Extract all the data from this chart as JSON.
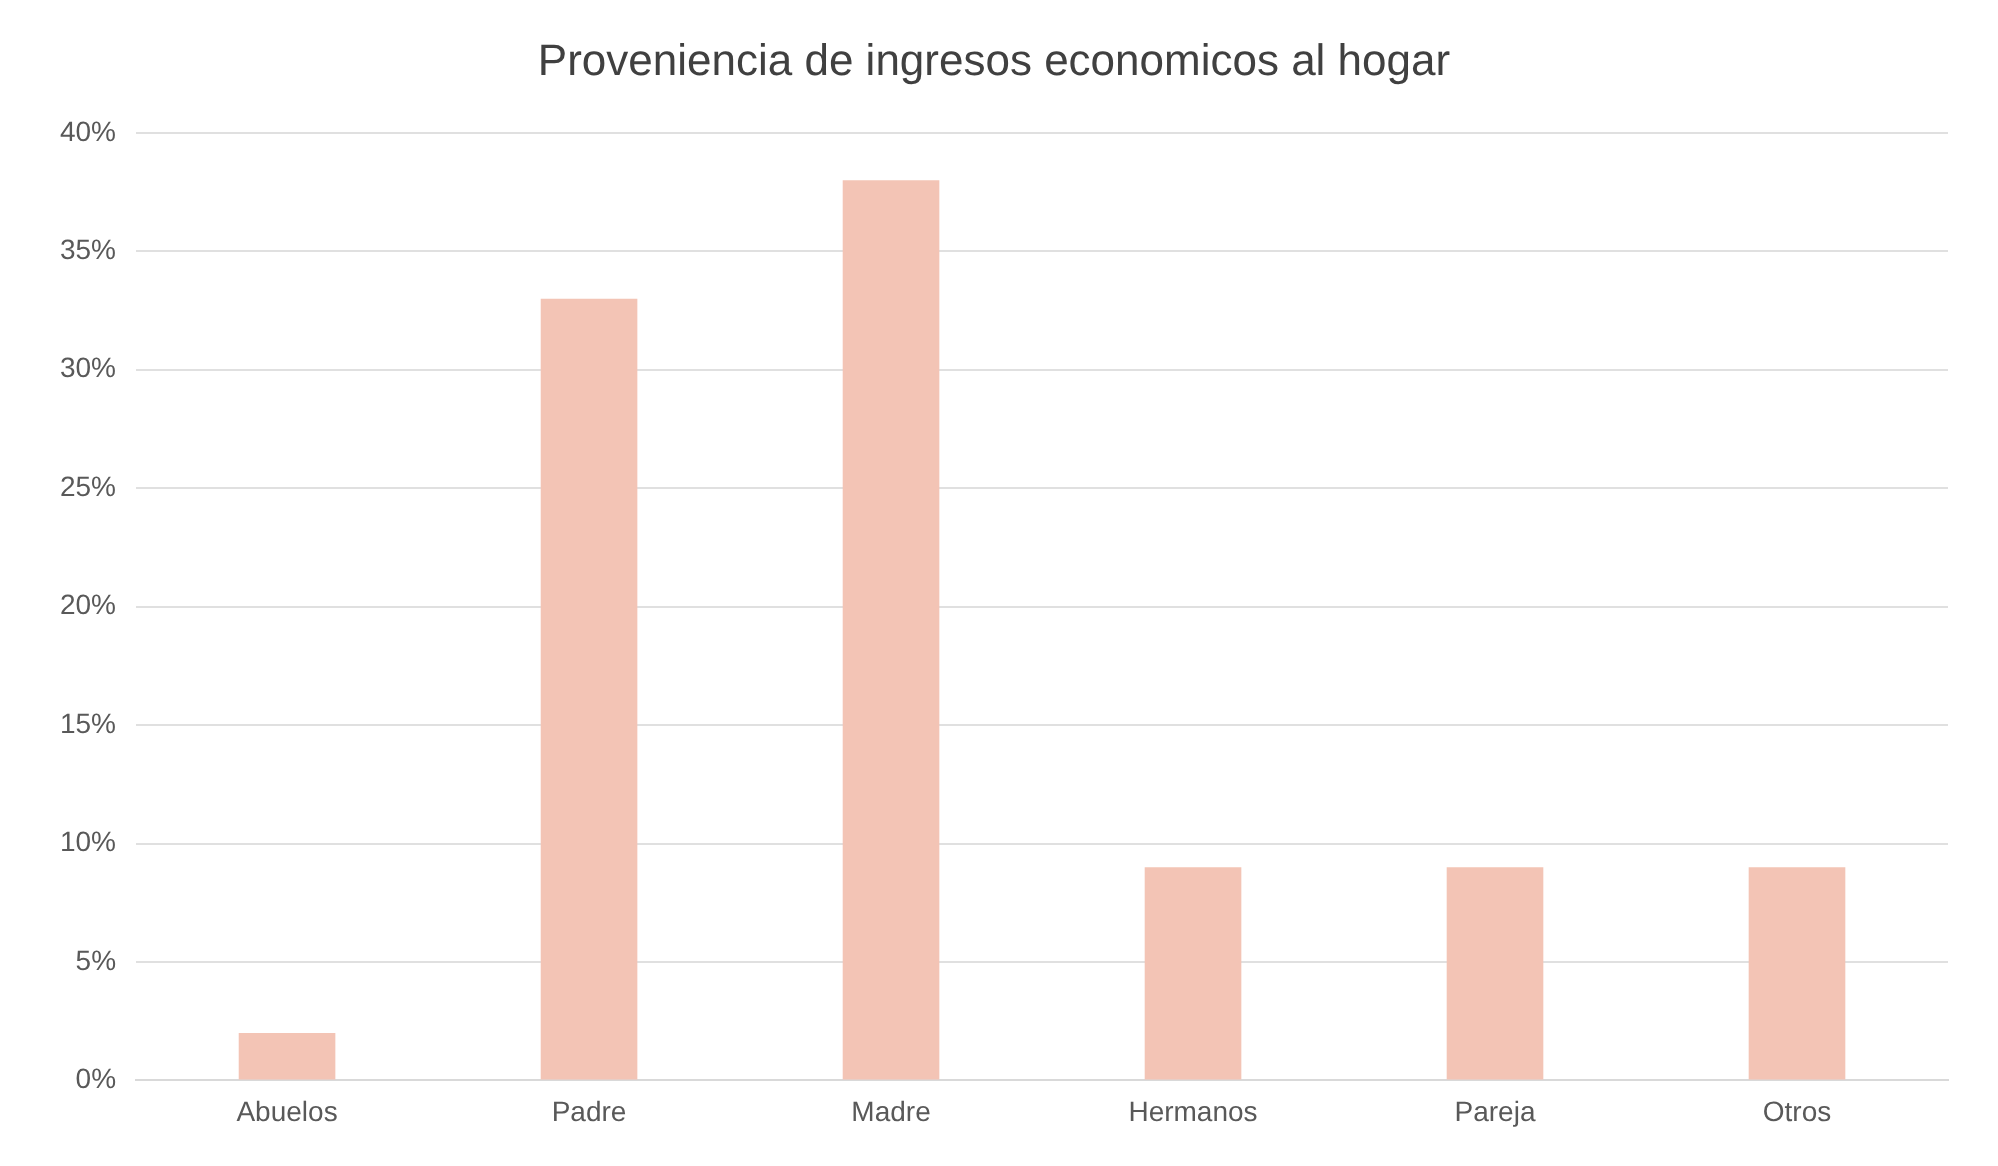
{
  "chart_data": {
    "type": "bar",
    "title": "Proveniencia de ingresos economicos al hogar",
    "categories": [
      "Abuelos",
      "Padre",
      "Madre",
      "Hermanos",
      "Pareja",
      "Otros"
    ],
    "values": [
      2,
      33,
      38,
      9,
      9,
      9
    ],
    "color": "#f3c4b5",
    "ylim": [
      0,
      40
    ],
    "yticks": [
      {
        "value": 0,
        "label": "0%"
      },
      {
        "value": 5,
        "label": "5%"
      },
      {
        "value": 10,
        "label": "10%"
      },
      {
        "value": 15,
        "label": "15%"
      },
      {
        "value": 20,
        "label": "20%"
      },
      {
        "value": 25,
        "label": "25%"
      },
      {
        "value": 30,
        "label": "30%"
      },
      {
        "value": 35,
        "label": "35%"
      },
      {
        "value": 40,
        "label": "40%"
      }
    ],
    "grid": "y"
  }
}
